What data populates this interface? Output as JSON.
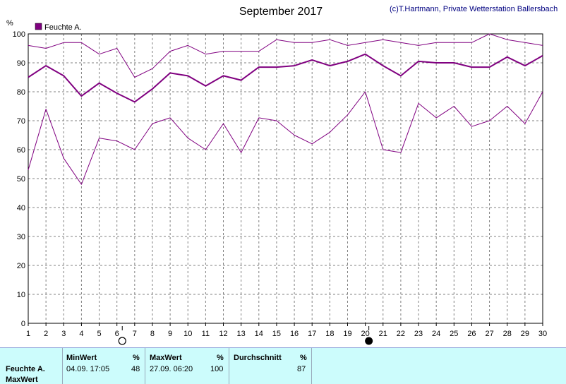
{
  "title": "September 2017",
  "credit": "(c)T.Hartmann, Private Wetterstation Ballersbach",
  "colors": {
    "line": "#800080",
    "grid": "#808080",
    "panel": "#ccfcfc",
    "credit": "#000080"
  },
  "chart_data": {
    "type": "line",
    "ylabel": "%",
    "ylim": [
      0,
      100
    ],
    "yticks": [
      0,
      10,
      20,
      30,
      40,
      50,
      60,
      70,
      80,
      90,
      100
    ],
    "x": [
      1,
      2,
      3,
      4,
      5,
      6,
      7,
      8,
      9,
      10,
      11,
      12,
      13,
      14,
      15,
      16,
      17,
      18,
      19,
      20,
      21,
      22,
      23,
      24,
      25,
      26,
      27,
      28,
      29,
      30
    ],
    "legend": "Feuchte A.",
    "legend_position": "top-left",
    "grid": true,
    "series": [
      {
        "name": "Feuchte A.",
        "role": "max",
        "values": [
          96,
          95,
          97,
          97,
          93,
          95,
          85,
          88,
          94,
          96,
          93,
          94,
          94,
          94,
          98,
          97,
          97,
          98,
          96,
          97,
          98,
          97,
          96,
          97,
          97,
          97,
          100,
          98,
          97,
          96
        ]
      },
      {
        "name": "Feuchte A.",
        "role": "mean",
        "values": [
          85,
          89,
          85.5,
          78.5,
          83,
          79.5,
          76.5,
          81,
          86.5,
          85.5,
          82,
          85.5,
          84,
          88.5,
          88.5,
          89,
          91,
          89,
          90.5,
          93,
          89,
          85.5,
          90.5,
          90,
          90,
          88.5,
          88.5,
          92,
          89,
          92.5
        ]
      },
      {
        "name": "Feuchte A.",
        "role": "min",
        "values": [
          53,
          74,
          57,
          48,
          64,
          63,
          60,
          69,
          71,
          64,
          60,
          69,
          59,
          71,
          70,
          65,
          62,
          66,
          72,
          80,
          60,
          59,
          76,
          71,
          75,
          68,
          70,
          75,
          69,
          80
        ]
      }
    ],
    "moon_phases": [
      {
        "day": 6.3,
        "phase": "full-moon"
      },
      {
        "day": 20.2,
        "phase": "new-moon"
      }
    ]
  },
  "stats": {
    "row_label": "Feuchte A.",
    "row_label2": "MaxWert",
    "min_header": "MinWert",
    "min_unit": "%",
    "min_time": "04.09.  17:05",
    "min_value": "48",
    "max_header": "MaxWert",
    "max_unit": "%",
    "max_time": "27.09.  06:20",
    "max_value": "100",
    "avg_header": "Durchschnitt",
    "avg_unit": "%",
    "avg_value": "87"
  }
}
